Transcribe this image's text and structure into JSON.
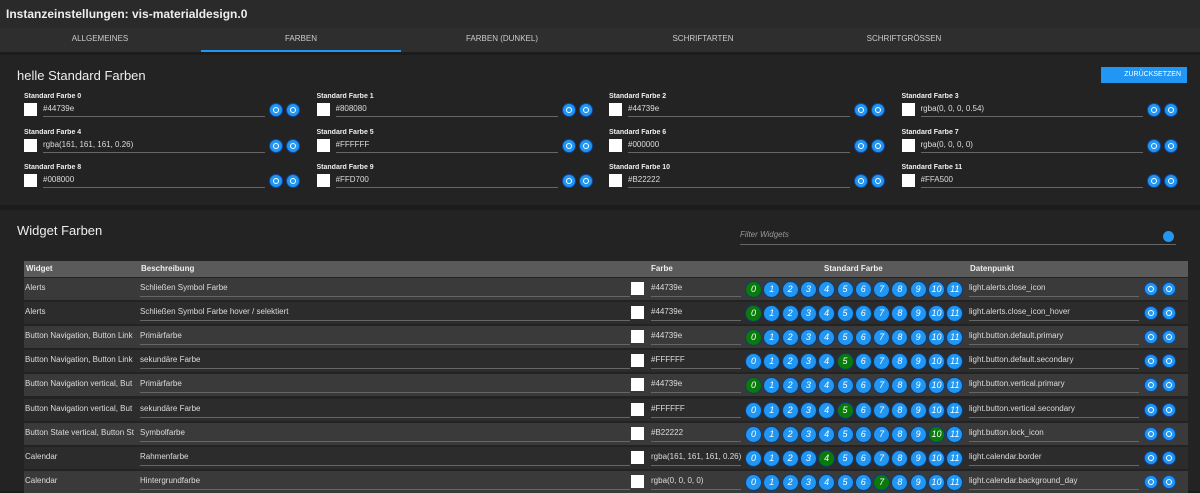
{
  "header": {
    "title": "Instanzeinstellungen: vis-materialdesign.0"
  },
  "tabs": [
    "ALLGEMEINES",
    "FARBEN",
    "FARBEN (DUNKEL)",
    "SCHRIFTARTEN",
    "SCHRIFTGRÖSSEN"
  ],
  "active_tab": 1,
  "standard_section": {
    "title": "helle Standard Farben",
    "reset_button": "ZURÜCKSETZEN",
    "colors": [
      {
        "label": "Standard Farbe 0",
        "value": "#44739e"
      },
      {
        "label": "Standard Farbe 1",
        "value": "#808080"
      },
      {
        "label": "Standard Farbe 2",
        "value": "#44739e"
      },
      {
        "label": "Standard Farbe 3",
        "value": "rgba(0, 0, 0, 0.54)"
      },
      {
        "label": "Standard Farbe 4",
        "value": "rgba(161, 161, 161, 0.26)"
      },
      {
        "label": "Standard Farbe 5",
        "value": "#FFFFFF"
      },
      {
        "label": "Standard Farbe 6",
        "value": "#000000"
      },
      {
        "label": "Standard Farbe 7",
        "value": "rgba(0, 0, 0, 0)"
      },
      {
        "label": "Standard Farbe 8",
        "value": "#008000"
      },
      {
        "label": "Standard Farbe 9",
        "value": "#FFD700"
      },
      {
        "label": "Standard Farbe 10",
        "value": "#B22222"
      },
      {
        "label": "Standard Farbe 11",
        "value": "#FFA500"
      }
    ]
  },
  "widget_section": {
    "title": "Widget Farben",
    "filter_placeholder": "Filter Widgets"
  },
  "table": {
    "headers": [
      "Widget",
      "Beschreibung",
      "Farbe",
      "Standard Farbe",
      "Datenpunkt"
    ],
    "standard_numbers": [
      0,
      1,
      2,
      3,
      4,
      5,
      6,
      7,
      8,
      9,
      10,
      11
    ],
    "rows": [
      {
        "widget": "Alerts",
        "description": "Schließen Symbol Farbe",
        "color": "#44739e",
        "selected": 0,
        "datapoint": "light.alerts.close_icon"
      },
      {
        "widget": "Alerts",
        "description": "Schließen Symbol Farbe hover / selektiert",
        "color": "#44739e",
        "selected": 0,
        "datapoint": "light.alerts.close_icon_hover"
      },
      {
        "widget": "Button Navigation, Button Link",
        "description": "Primärfarbe",
        "color": "#44739e",
        "selected": 0,
        "datapoint": "light.button.default.primary"
      },
      {
        "widget": "Button Navigation, Button Link",
        "description": "sekundäre Farbe",
        "color": "#FFFFFF",
        "selected": 5,
        "datapoint": "light.button.default.secondary"
      },
      {
        "widget": "Button Navigation vertical, But",
        "description": "Primärfarbe",
        "color": "#44739e",
        "selected": 0,
        "datapoint": "light.button.vertical.primary"
      },
      {
        "widget": "Button Navigation vertical, But",
        "description": "sekundäre Farbe",
        "color": "#FFFFFF",
        "selected": 5,
        "datapoint": "light.button.vertical.secondary"
      },
      {
        "widget": "Button State vertical, Button St",
        "description": "Symbolfarbe",
        "color": "#B22222",
        "selected": 10,
        "datapoint": "light.button.lock_icon"
      },
      {
        "widget": "Calendar",
        "description": "Rahmenfarbe",
        "color": "rgba(161, 161, 161, 0.26)",
        "selected": 4,
        "datapoint": "light.calendar.border"
      },
      {
        "widget": "Calendar",
        "description": "Hintergrundfarbe",
        "color": "rgba(0, 0, 0, 0)",
        "selected": 7,
        "datapoint": "light.calendar.background_day"
      }
    ]
  }
}
